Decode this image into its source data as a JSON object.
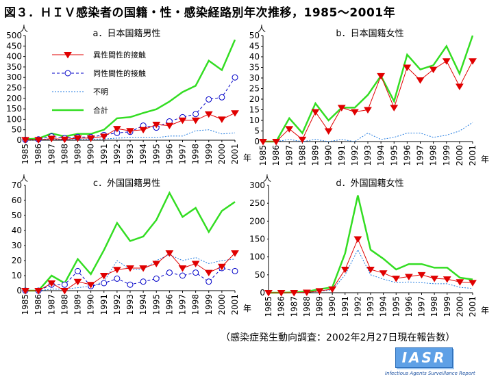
{
  "figure": {
    "title": "図３．ＨＩＶ感染者の国籍・性・感染経路別年次推移，1985～2001年",
    "source_note": "（感染症発生動向調査：2002年2月27日現在報告数）",
    "logo_text": "IASR",
    "logo_caption": "Infectious Agents Surveillance Report",
    "y_unit": "人",
    "x_unit": "年"
  },
  "legend": [
    "異性間性的接触",
    "同性間性的接触",
    "不明",
    "合計"
  ],
  "colors": {
    "hetero": "#e00000",
    "homo": "#0000c8",
    "unknown": "#1f7ae0",
    "total": "#33dd22"
  },
  "chart_data": [
    {
      "type": "line",
      "title": "a．日本国籍男性",
      "categories": [
        "1985",
        "1986",
        "1987",
        "1988",
        "1989",
        "1990",
        "1991",
        "1992",
        "1993",
        "1994",
        "1995",
        "1996",
        "1997",
        "1998",
        "1999",
        "2000",
        "2001"
      ],
      "ylim": [
        0,
        500
      ],
      "yticks": [
        0,
        50,
        100,
        150,
        200,
        250,
        300,
        350,
        400,
        450,
        500
      ],
      "legend_position": "top-left",
      "series": [
        {
          "name": "異性間性的接触",
          "values": [
            2,
            2,
            8,
            4,
            10,
            10,
            18,
            55,
            45,
            50,
            75,
            70,
            95,
            95,
            125,
            100,
            130
          ]
        },
        {
          "name": "同性間性的接触",
          "values": [
            2,
            4,
            18,
            10,
            15,
            15,
            25,
            35,
            40,
            70,
            60,
            90,
            110,
            125,
            195,
            205,
            300
          ]
        },
        {
          "name": "不明",
          "values": [
            1,
            1,
            4,
            2,
            3,
            5,
            6,
            10,
            12,
            12,
            12,
            20,
            20,
            45,
            50,
            30,
            35
          ]
        },
        {
          "name": "合計",
          "values": [
            5,
            8,
            32,
            18,
            30,
            30,
            50,
            105,
            110,
            130,
            148,
            185,
            230,
            260,
            380,
            335,
            480
          ]
        }
      ]
    },
    {
      "type": "line",
      "title": "b．日本国籍女性",
      "categories": [
        "1985",
        "1986",
        "1987",
        "1988",
        "1989",
        "1990",
        "1991",
        "1992",
        "1993",
        "1994",
        "1995",
        "1996",
        "1997",
        "1998",
        "1999",
        "2000",
        "2001"
      ],
      "ylim": [
        0,
        50
      ],
      "yticks": [
        0,
        5,
        10,
        15,
        20,
        25,
        30,
        35,
        40,
        45,
        50
      ],
      "series": [
        {
          "name": "異性間性的接触",
          "values": [
            0,
            0,
            6,
            1,
            14,
            5,
            16,
            14,
            15,
            31,
            16,
            35,
            29,
            34,
            38,
            26,
            38
          ]
        },
        {
          "name": "不明",
          "values": [
            0,
            0,
            1,
            0,
            1,
            0,
            1,
            0,
            4,
            1,
            2,
            4,
            4,
            2,
            3,
            5,
            9
          ]
        },
        {
          "name": "合計",
          "values": [
            0,
            0,
            11,
            4,
            18,
            10,
            16,
            16,
            22,
            31,
            19,
            41,
            34,
            36,
            45,
            32,
            50
          ]
        }
      ]
    },
    {
      "type": "line",
      "title": "c．外国国籍男性",
      "categories": [
        "1985",
        "1986",
        "1987",
        "1988",
        "1989",
        "1990",
        "1991",
        "1992",
        "1993",
        "1994",
        "1995",
        "1996",
        "1997",
        "1998",
        "1999",
        "2000",
        "2001"
      ],
      "ylim": [
        0,
        70
      ],
      "yticks": [
        0,
        10,
        20,
        30,
        40,
        50,
        60,
        70
      ],
      "series": [
        {
          "name": "異性間性的接触",
          "values": [
            0,
            0,
            5,
            0,
            6,
            4,
            10,
            14,
            15,
            15,
            18,
            25,
            15,
            18,
            12,
            16,
            25
          ]
        },
        {
          "name": "同性間性的接触",
          "values": [
            0,
            0,
            4,
            4,
            13,
            3,
            5,
            8,
            4,
            6,
            8,
            12,
            10,
            12,
            6,
            15,
            13
          ]
        },
        {
          "name": "不明",
          "values": [
            0,
            0,
            1,
            1,
            2,
            3,
            6,
            20,
            14,
            14,
            20,
            24,
            20,
            22,
            18,
            20,
            21
          ]
        },
        {
          "name": "合計",
          "values": [
            0,
            0,
            10,
            5,
            21,
            11,
            27,
            45,
            33,
            36,
            47,
            65,
            49,
            55,
            39,
            53,
            59
          ]
        }
      ]
    },
    {
      "type": "line",
      "title": "d．外国国籍女性",
      "categories": [
        "1985",
        "1986",
        "1987",
        "1988",
        "1989",
        "1990",
        "1991",
        "1992",
        "1993",
        "1994",
        "1995",
        "1996",
        "1997",
        "1998",
        "1999",
        "2000",
        "2001"
      ],
      "ylim": [
        0,
        300
      ],
      "yticks": [
        0,
        50,
        100,
        150,
        200,
        250,
        300
      ],
      "series": [
        {
          "name": "異性間性的接触",
          "values": [
            0,
            0,
            0,
            1,
            5,
            10,
            65,
            150,
            65,
            55,
            40,
            45,
            50,
            40,
            38,
            30,
            28
          ]
        },
        {
          "name": "不明",
          "values": [
            0,
            0,
            0,
            1,
            4,
            8,
            50,
            120,
            50,
            38,
            28,
            30,
            28,
            25,
            25,
            15,
            12
          ]
        },
        {
          "name": "合計",
          "values": [
            0,
            0,
            1,
            3,
            10,
            15,
            110,
            272,
            120,
            95,
            65,
            80,
            80,
            70,
            70,
            42,
            37
          ]
        }
      ]
    }
  ]
}
